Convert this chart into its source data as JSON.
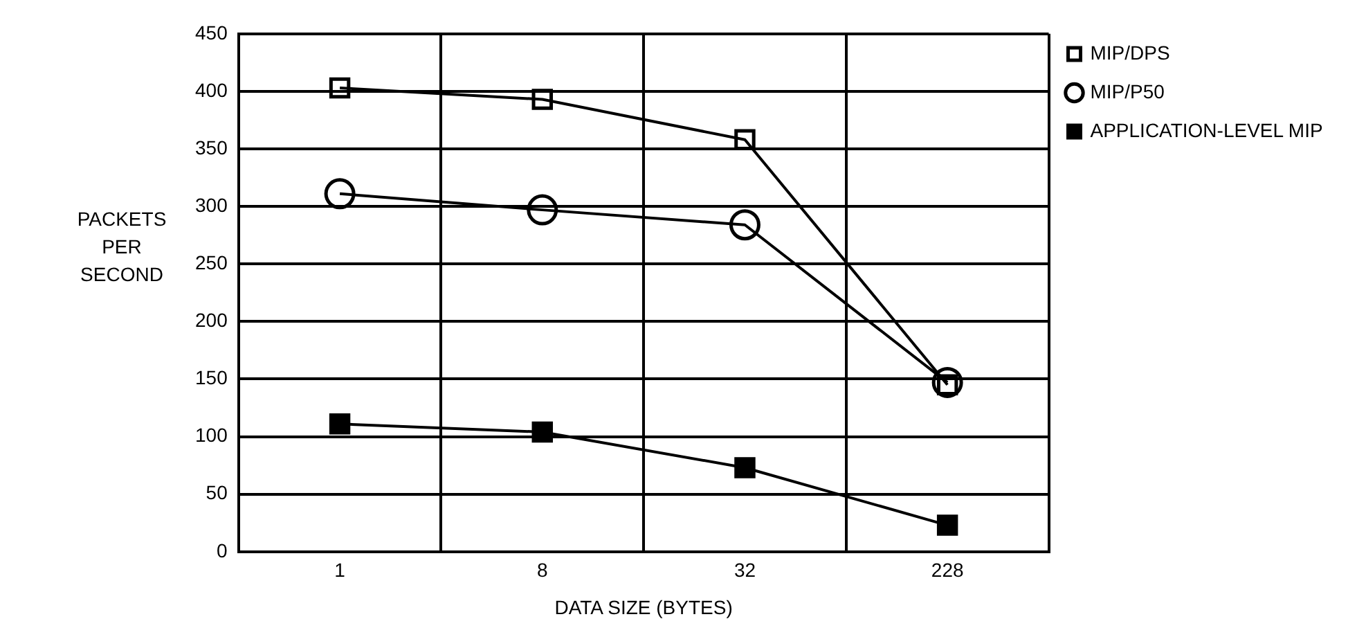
{
  "chart_data": {
    "type": "line",
    "xlabel": "DATA SIZE (BYTES)",
    "ylabel": "PACKETS\nPER\nSECOND",
    "categories": [
      "1",
      "8",
      "32",
      "228"
    ],
    "series": [
      {
        "name": "MIP/DPS",
        "color": "#000000",
        "marker": "square",
        "values": [
          403,
          393,
          358,
          145
        ]
      },
      {
        "name": "MIP/P50",
        "color": "#000000",
        "marker": "circle",
        "values": [
          311,
          297,
          284,
          147
        ]
      },
      {
        "name": "APPLICATION-LEVEL MIP",
        "color": "#000000",
        "marker": "square",
        "values": [
          111,
          104,
          73,
          23
        ]
      }
    ],
    "ylim": [
      0,
      450
    ],
    "yticks": [
      0,
      50,
      100,
      150,
      200,
      250,
      300,
      350,
      400,
      450
    ],
    "grid": true,
    "legend": "top right",
    "line_style": "solid"
  }
}
